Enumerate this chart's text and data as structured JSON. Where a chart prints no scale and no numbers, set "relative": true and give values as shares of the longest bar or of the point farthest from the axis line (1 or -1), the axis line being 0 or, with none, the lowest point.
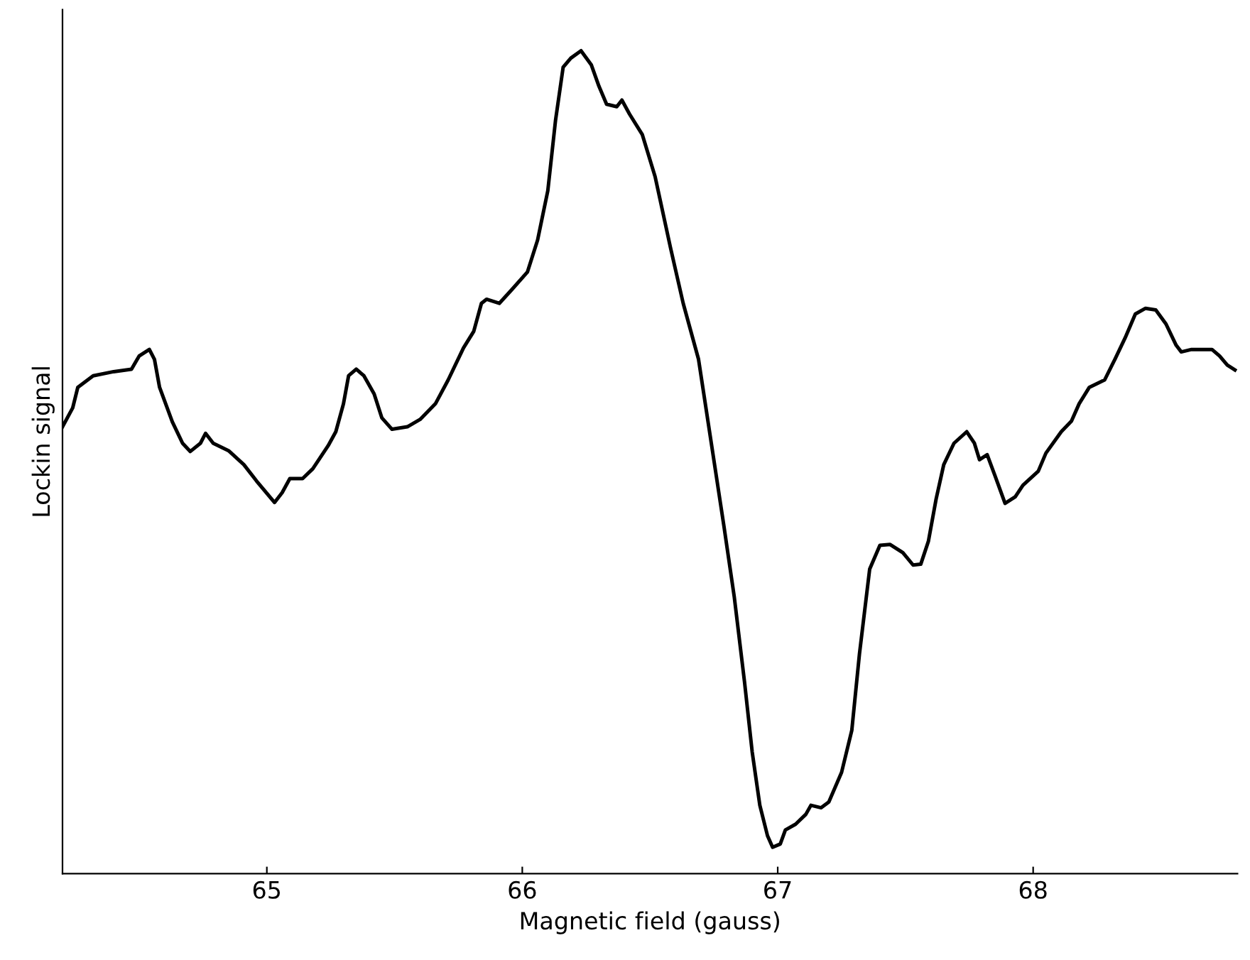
{
  "chart_data": {
    "type": "line",
    "xlabel": "Magnetic field (gauss)",
    "ylabel": "Lockin signal",
    "relative": true,
    "xlim": [
      64.2,
      68.8
    ],
    "xticks": [
      65,
      66,
      67,
      68
    ],
    "grid": false,
    "legend": false,
    "marker": "none",
    "line_style": "solid",
    "series": [
      {
        "color": "#000000",
        "x": [
          64.2,
          64.24,
          64.26,
          64.32,
          64.4,
          64.47,
          64.5,
          64.54,
          64.56,
          64.58,
          64.63,
          64.67,
          64.7,
          64.74,
          64.76,
          64.79,
          64.85,
          64.91,
          64.96,
          65.03,
          65.06,
          65.09,
          65.14,
          65.18,
          65.24,
          65.27,
          65.3,
          65.32,
          65.35,
          65.38,
          65.42,
          65.45,
          65.49,
          65.55,
          65.6,
          65.66,
          65.71,
          65.77,
          65.81,
          65.84,
          65.86,
          65.91,
          65.96,
          66.02,
          66.06,
          66.1,
          66.13,
          66.16,
          66.19,
          66.23,
          66.27,
          66.3,
          66.33,
          66.37,
          66.39,
          66.42,
          66.47,
          66.52,
          66.58,
          66.63,
          66.69,
          66.74,
          66.79,
          66.83,
          66.87,
          66.9,
          66.93,
          66.96,
          66.98,
          67.01,
          67.03,
          67.07,
          67.11,
          67.13,
          67.17,
          67.2,
          67.25,
          67.29,
          67.32,
          67.36,
          67.4,
          67.44,
          67.49,
          67.53,
          67.56,
          67.59,
          67.62,
          67.65,
          67.69,
          67.74,
          67.77,
          67.79,
          67.82,
          67.85,
          67.89,
          67.93,
          67.96,
          68.02,
          68.05,
          68.11,
          68.15,
          68.18,
          68.22,
          68.28,
          68.32,
          68.36,
          68.4,
          68.44,
          68.48,
          68.52,
          68.56,
          68.58,
          68.62,
          68.67,
          68.7,
          68.73,
          68.76,
          68.79
        ],
        "values": [
          0.543,
          0.566,
          0.591,
          0.605,
          0.61,
          0.613,
          0.629,
          0.637,
          0.625,
          0.591,
          0.549,
          0.523,
          0.513,
          0.523,
          0.535,
          0.523,
          0.514,
          0.497,
          0.477,
          0.451,
          0.463,
          0.48,
          0.48,
          0.492,
          0.52,
          0.537,
          0.571,
          0.605,
          0.613,
          0.605,
          0.583,
          0.554,
          0.54,
          0.543,
          0.552,
          0.571,
          0.6,
          0.639,
          0.659,
          0.693,
          0.698,
          0.693,
          0.71,
          0.731,
          0.77,
          0.83,
          0.915,
          0.98,
          0.991,
          1.0,
          0.983,
          0.957,
          0.935,
          0.932,
          0.94,
          0.923,
          0.898,
          0.847,
          0.761,
          0.693,
          0.625,
          0.523,
          0.421,
          0.336,
          0.233,
          0.148,
          0.083,
          0.046,
          0.032,
          0.036,
          0.053,
          0.06,
          0.072,
          0.083,
          0.08,
          0.087,
          0.123,
          0.174,
          0.267,
          0.37,
          0.399,
          0.4,
          0.39,
          0.375,
          0.376,
          0.404,
          0.455,
          0.497,
          0.523,
          0.537,
          0.523,
          0.503,
          0.509,
          0.484,
          0.45,
          0.458,
          0.472,
          0.489,
          0.511,
          0.537,
          0.55,
          0.571,
          0.591,
          0.6,
          0.625,
          0.651,
          0.68,
          0.687,
          0.685,
          0.668,
          0.642,
          0.634,
          0.637,
          0.637,
          0.637,
          0.629,
          0.618,
          0.612
        ]
      }
    ]
  }
}
